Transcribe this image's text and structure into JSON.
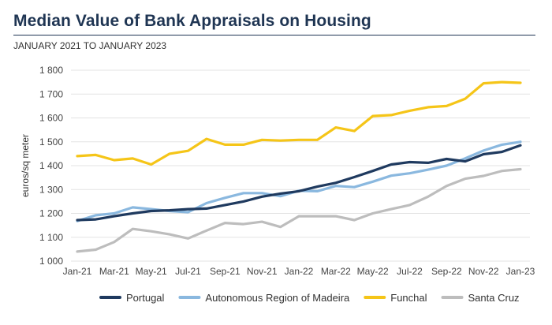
{
  "title": "Median Value of Bank Appraisals on Housing",
  "subtitle": "JANUARY 2021 TO JANUARY 2023",
  "chart_data": {
    "type": "line",
    "ylabel": "euros/sq meter",
    "ylim": [
      1000,
      1800
    ],
    "yticks": [
      1000,
      1100,
      1200,
      1300,
      1400,
      1500,
      1600,
      1700,
      1800
    ],
    "ytick_labels": [
      "1 000",
      "1 100",
      "1 200",
      "1 300",
      "1 400",
      "1 500",
      "1 600",
      "1 700",
      "1 800"
    ],
    "x": [
      "Jan-21",
      "Feb-21",
      "Mar-21",
      "Apr-21",
      "May-21",
      "Jun-21",
      "Jul-21",
      "Aug-21",
      "Sep-21",
      "Oct-21",
      "Nov-21",
      "Dec-21",
      "Jan-22",
      "Feb-22",
      "Mar-22",
      "Apr-22",
      "May-22",
      "Jun-22",
      "Jul-22",
      "Aug-22",
      "Sep-22",
      "Oct-22",
      "Nov-22",
      "Dec-22",
      "Jan-23"
    ],
    "xtick_labels": [
      "Jan-21",
      "Mar-21",
      "May-21",
      "Jul-21",
      "Sep-21",
      "Nov-21",
      "Jan-22",
      "Mar-22",
      "May-22",
      "Jul-22",
      "Sep-22",
      "Nov-22",
      "Jan-23"
    ],
    "grid": "horizontal",
    "legend_position": "bottom",
    "series": [
      {
        "name": "Portugal",
        "color": "#1f3a5f",
        "values": [
          1172,
          1175,
          1188,
          1200,
          1210,
          1213,
          1218,
          1220,
          1235,
          1250,
          1270,
          1283,
          1293,
          1312,
          1328,
          1352,
          1378,
          1405,
          1415,
          1412,
          1428,
          1418,
          1448,
          1458,
          1485
        ]
      },
      {
        "name": "Autonomous Region of Madeira",
        "color": "#8ab8df",
        "values": [
          1168,
          1192,
          1200,
          1225,
          1218,
          1210,
          1205,
          1243,
          1265,
          1285,
          1285,
          1272,
          1295,
          1293,
          1315,
          1310,
          1333,
          1358,
          1368,
          1383,
          1400,
          1430,
          1463,
          1488,
          1500
        ]
      },
      {
        "name": "Funchal",
        "color": "#f5c518",
        "values": [
          1440,
          1445,
          1423,
          1430,
          1405,
          1450,
          1462,
          1512,
          1488,
          1488,
          1508,
          1505,
          1508,
          1508,
          1560,
          1545,
          1608,
          1612,
          1630,
          1645,
          1650,
          1680,
          1745,
          1750,
          1747
        ]
      },
      {
        "name": "Santa Cruz",
        "color": "#bdbdbd",
        "values": [
          1040,
          1048,
          1080,
          1135,
          1125,
          1112,
          1095,
          1128,
          1160,
          1155,
          1165,
          1143,
          1188,
          1188,
          1188,
          1172,
          1200,
          1218,
          1235,
          1270,
          1315,
          1345,
          1357,
          1378,
          1385
        ]
      }
    ]
  }
}
